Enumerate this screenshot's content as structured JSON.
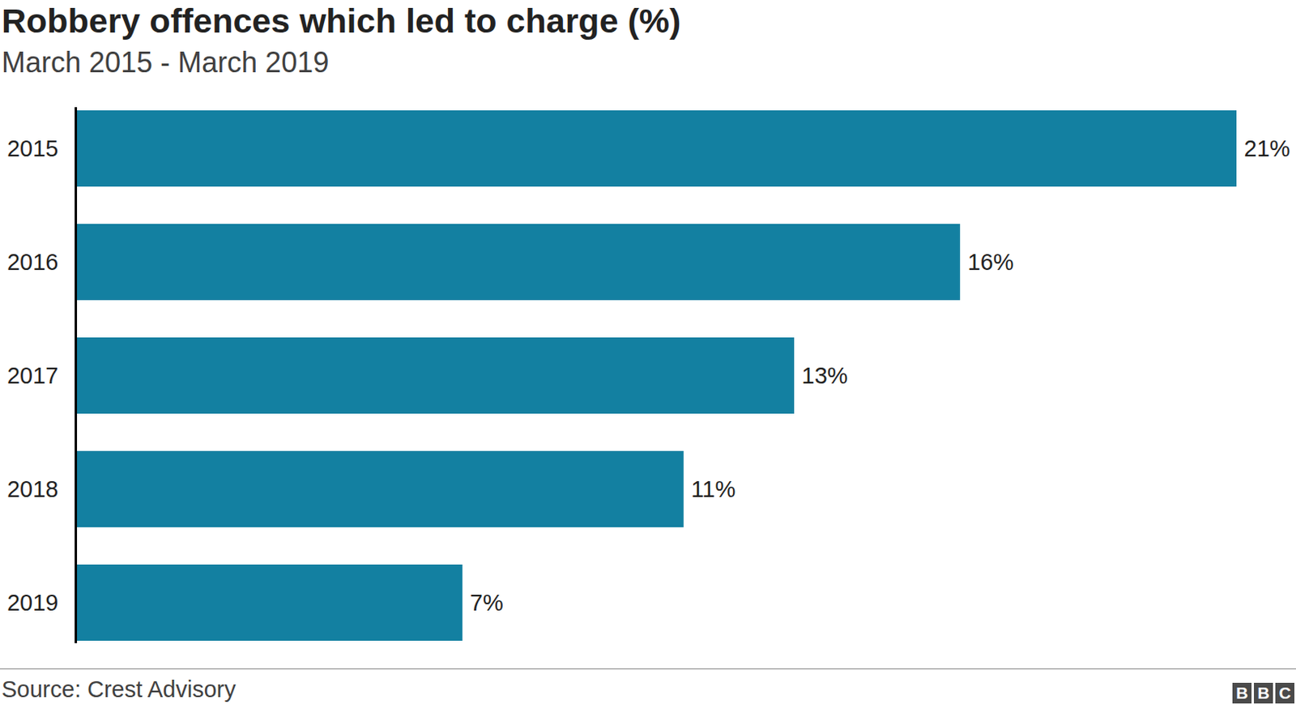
{
  "chart_data": {
    "type": "bar",
    "orientation": "horizontal",
    "title": "Robbery offences which led to charge (%)",
    "subtitle": "March 2015 - March 2019",
    "annotations": [
      "Source: Crest Advisory",
      "BBC"
    ],
    "categories": [
      "2015",
      "2016",
      "2017",
      "2018",
      "2019"
    ],
    "values": [
      21,
      16,
      13,
      11,
      7
    ],
    "value_labels": [
      "21%",
      "16%",
      "13%",
      "11%",
      "7%"
    ],
    "color": "#1380a1",
    "xlim": [
      0,
      21
    ],
    "data_labels": true,
    "tick_labels": "y",
    "grid": false
  }
}
